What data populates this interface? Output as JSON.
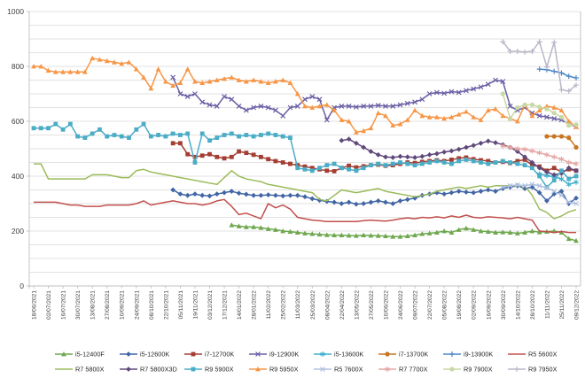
{
  "chart_data": {
    "type": "line",
    "title": "",
    "xlabel": "",
    "ylabel": "",
    "ylim": [
      0,
      1000
    ],
    "y_ticks": [
      0,
      200,
      400,
      600,
      800,
      1000
    ],
    "grid_step": 50,
    "grid_on": true,
    "legend_position": "bottom",
    "n_points": 75,
    "label_every": 2,
    "x_labels": [
      "18/06/2021",
      "02/07/2021",
      "16/07/2021",
      "30/07/2021",
      "13/08/2021",
      "27/08/2021",
      "10/09/2021",
      "24/09/2021",
      "08/10/2021",
      "22/10/2021",
      "05/11/2021",
      "19/11/2021",
      "03/12/2021",
      "17/12/2021",
      "14/01/2022",
      "28/01/2022",
      "11/02/2022",
      "25/02/2022",
      "11/03/2022",
      "25/03/2022",
      "08/04/2022",
      "22/04/2022",
      "13/05/2022",
      "27/05/2022",
      "10/06/2022",
      "24/06/2022",
      "09/07/2022",
      "22/07/2022",
      "05/08/2022",
      "19/08/2022",
      "02/09/2022",
      "16/09/2022",
      "30/09/2022",
      "14/10/2022",
      "28/10/2022",
      "11/11/2022",
      "25/11/2022",
      "09/12/2022"
    ],
    "series": [
      {
        "name": "i5-12400F",
        "color": "#6FA84F",
        "marker": "triangle",
        "start": 27,
        "values": [
          222,
          218,
          215,
          215,
          212,
          208,
          205,
          200,
          198,
          195,
          192,
          190,
          188,
          186,
          185,
          185,
          184,
          183,
          185,
          184,
          183,
          182,
          180,
          180,
          182,
          185,
          190,
          192,
          195,
          200,
          195,
          205,
          210,
          205,
          200,
          198,
          195,
          196,
          195,
          192,
          195,
          200,
          196,
          198,
          200,
          195,
          172,
          165
        ]
      },
      {
        "name": "i5-12600K",
        "color": "#4165A5",
        "marker": "diamond",
        "start": 19,
        "values": [
          350,
          335,
          330,
          335,
          330,
          328,
          335,
          340,
          345,
          338,
          334,
          330,
          330,
          332,
          330,
          328,
          330,
          330,
          325,
          318,
          312,
          308,
          305,
          300,
          305,
          298,
          300,
          305,
          310,
          305,
          300,
          310,
          315,
          320,
          330,
          335,
          340,
          335,
          340,
          345,
          342,
          340,
          345,
          350,
          345,
          355,
          360,
          365,
          355,
          360,
          340,
          310,
          335,
          345,
          300,
          320
        ]
      },
      {
        "name": "i7-12700K",
        "color": "#A43E32",
        "marker": "square",
        "start": 19,
        "values": [
          520,
          520,
          480,
          470,
          475,
          480,
          470,
          465,
          470,
          490,
          485,
          478,
          470,
          462,
          455,
          450,
          445,
          440,
          435,
          430,
          425,
          420,
          418,
          430,
          438,
          432,
          436,
          440,
          442,
          438,
          440,
          445,
          450,
          448,
          452,
          455,
          458,
          455,
          460,
          465,
          468,
          462,
          458,
          455,
          450,
          452,
          448,
          455,
          460,
          440,
          435,
          420,
          430,
          415,
          425,
          420
        ]
      },
      {
        "name": "i9-12900K",
        "color": "#6B5FA5",
        "marker": "x",
        "start": 19,
        "values": [
          760,
          700,
          690,
          700,
          670,
          660,
          655,
          690,
          680,
          655,
          640,
          650,
          655,
          650,
          640,
          620,
          650,
          655,
          680,
          690,
          680,
          605,
          650,
          655,
          655,
          652,
          655,
          655,
          658,
          655,
          655,
          660,
          665,
          670,
          680,
          700,
          705,
          702,
          708,
          705,
          712,
          718,
          725,
          735,
          750,
          745,
          655,
          640,
          650,
          630,
          620,
          615,
          610,
          605,
          590,
          580
        ]
      },
      {
        "name": "i5-13600K",
        "color": "#3FAECC",
        "marker": "asterisk",
        "start": 69,
        "values": [
          408,
          402,
          398,
          390,
          370,
          378
        ]
      },
      {
        "name": "i7-13700K",
        "color": "#C87420",
        "marker": "circle",
        "start": 70,
        "values": [
          545,
          545,
          545,
          540,
          505
        ]
      },
      {
        "name": "i9-13900K",
        "color": "#4E87C7",
        "marker": "plus",
        "start": 69,
        "values": [
          790,
          788,
          782,
          776,
          764,
          758
        ]
      },
      {
        "name": "R5 5600X",
        "color": "#C0504D",
        "marker": "none",
        "start": 0,
        "values": [
          305,
          305,
          305,
          305,
          300,
          295,
          295,
          290,
          290,
          290,
          295,
          295,
          295,
          295,
          300,
          310,
          295,
          300,
          305,
          310,
          305,
          300,
          300,
          295,
          300,
          310,
          315,
          290,
          260,
          265,
          255,
          245,
          300,
          285,
          295,
          280,
          250,
          245,
          240,
          238,
          235,
          235,
          235,
          235,
          235,
          238,
          240,
          238,
          236,
          240,
          245,
          248,
          245,
          250,
          248,
          252,
          248,
          255,
          250,
          258,
          250,
          248,
          252,
          250,
          248,
          245,
          250,
          245,
          240,
          200,
          198,
          195,
          198,
          195,
          195
        ]
      },
      {
        "name": "R7 5800X",
        "color": "#9BBB59",
        "marker": "none",
        "start": 0,
        "values": [
          445,
          445,
          390,
          390,
          390,
          390,
          390,
          390,
          405,
          405,
          405,
          400,
          395,
          395,
          420,
          425,
          415,
          410,
          405,
          400,
          395,
          390,
          385,
          380,
          375,
          370,
          395,
          420,
          400,
          390,
          385,
          380,
          370,
          365,
          360,
          355,
          350,
          345,
          340,
          315,
          310,
          330,
          350,
          345,
          340,
          345,
          350,
          355,
          345,
          340,
          335,
          330,
          325,
          330,
          335,
          345,
          350,
          355,
          360,
          355,
          360,
          365,
          360,
          365,
          365,
          365,
          365,
          365,
          330,
          280,
          268,
          245,
          255,
          270,
          278
        ]
      },
      {
        "name": "R7 5800X3D",
        "color": "#5F497A",
        "marker": "diamond",
        "start": 42,
        "values": [
          530,
          535,
          520,
          505,
          490,
          478,
          470,
          468,
          472,
          470,
          468,
          472,
          478,
          482,
          488,
          492,
          498,
          505,
          512,
          520,
          528,
          522,
          515,
          505,
          490,
          470,
          450,
          430,
          415,
          405,
          410,
          430,
          420
        ]
      },
      {
        "name": "R9 5900X",
        "color": "#4BACC6",
        "marker": "square",
        "start": 0,
        "values": [
          575,
          575,
          575,
          590,
          570,
          590,
          545,
          540,
          555,
          570,
          545,
          550,
          545,
          540,
          570,
          590,
          545,
          550,
          545,
          555,
          550,
          555,
          450,
          555,
          530,
          540,
          550,
          555,
          545,
          550,
          545,
          550,
          555,
          550,
          545,
          540,
          430,
          425,
          420,
          430,
          440,
          445,
          430,
          425,
          420,
          430,
          440,
          445,
          440,
          445,
          450,
          445,
          440,
          445,
          450,
          455,
          450,
          445,
          455,
          460,
          455,
          450,
          445,
          450,
          455,
          450,
          445,
          440,
          430,
          400,
          360,
          385,
          420,
          390,
          400
        ]
      },
      {
        "name": "R9 5950X",
        "color": "#F79646",
        "marker": "triangle",
        "start": 0,
        "values": [
          800,
          800,
          785,
          780,
          780,
          780,
          780,
          780,
          830,
          825,
          820,
          815,
          810,
          815,
          790,
          760,
          720,
          790,
          745,
          730,
          740,
          790,
          745,
          740,
          745,
          750,
          755,
          760,
          750,
          745,
          750,
          745,
          740,
          745,
          750,
          740,
          700,
          655,
          650,
          655,
          660,
          640,
          605,
          600,
          560,
          565,
          575,
          630,
          620,
          585,
          590,
          605,
          640,
          620,
          615,
          615,
          610,
          615,
          625,
          635,
          615,
          605,
          640,
          645,
          620,
          610,
          600,
          660,
          620,
          640,
          655,
          650,
          640,
          600,
          580
        ]
      },
      {
        "name": "R5 7600X",
        "color": "#AFC0DF",
        "marker": "x",
        "start": 64,
        "values": [
          360,
          365,
          368,
          365,
          370,
          365,
          358,
          345,
          330,
          305,
          300
        ]
      },
      {
        "name": "R7 7700X",
        "color": "#E6A6A4",
        "marker": "asterisk",
        "start": 64,
        "values": [
          510,
          505,
          500,
          498,
          492,
          485,
          478,
          470,
          462,
          450,
          445
        ]
      },
      {
        "name": "R9 7900X",
        "color": "#C8D9A5",
        "marker": "circle",
        "start": 64,
        "values": [
          700,
          610,
          650,
          660,
          660,
          652,
          645,
          630,
          615,
          585,
          588
        ]
      },
      {
        "name": "R9 7950X",
        "color": "#B7B7C8",
        "marker": "plus",
        "start": 64,
        "values": [
          890,
          855,
          855,
          852,
          855,
          890,
          798,
          888,
          715,
          710,
          732
        ]
      }
    ],
    "legend_rows": [
      [
        "i5-12400F",
        "i5-12600K",
        "i7-12700K",
        "i9-12900K",
        "i5-13600K",
        "i7-13700K",
        "i9-13900K",
        "R5 5600X"
      ],
      [
        "R7 5800X",
        "R7 5800X3D",
        "R9 5900X",
        "R9 5950X",
        "R5 7600X",
        "R7 7700X",
        "R9 7900X",
        "R9 7950X"
      ]
    ]
  },
  "style": {
    "grid_color": "#D9D9D9",
    "axis_color": "#BFBFBF",
    "tick_text_color": "#404040",
    "legend_text_color": "#262626",
    "background": "#FFFFFF"
  }
}
